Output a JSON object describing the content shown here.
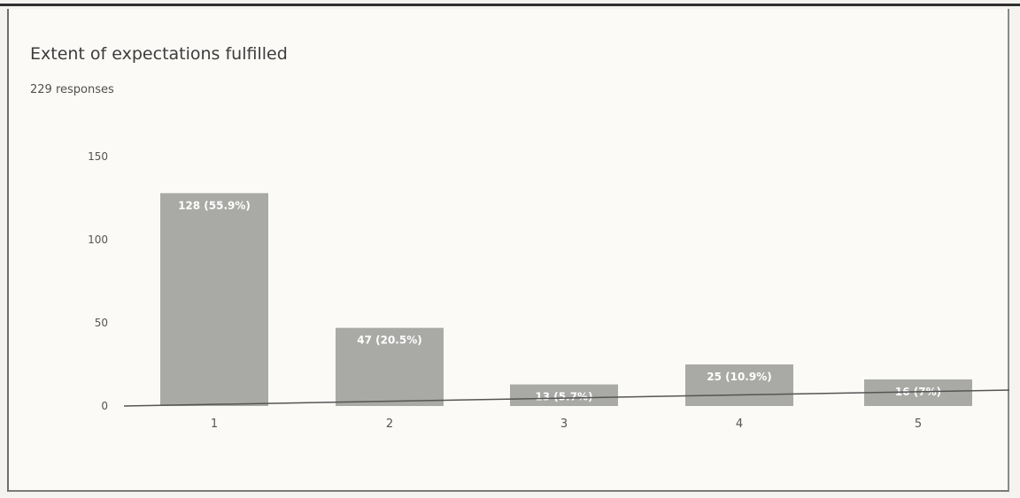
{
  "card": {
    "title": "Extent of expectations fulfilled",
    "subtitle": "229 responses"
  },
  "colors": {
    "bar": "#a9a9a6",
    "bar_label": "#ffffff",
    "axis": "#555555",
    "tick_text": "#555555",
    "background": "#fbfaf7"
  },
  "chart_data": {
    "type": "bar",
    "title": "Extent of expectations fulfilled",
    "subtitle": "229 responses",
    "categories": [
      "1",
      "2",
      "3",
      "4",
      "5"
    ],
    "values": [
      128,
      47,
      13,
      25,
      16
    ],
    "data_labels": [
      "128 (55.9%)",
      "47 (20.5%)",
      "13 (5.7%)",
      "25 (10.9%)",
      "16 (7%)"
    ],
    "yticks": [
      0,
      50,
      100,
      150
    ],
    "ylim": [
      0,
      150
    ],
    "xlabel": "",
    "ylabel": "",
    "grid": false,
    "legend": "none"
  }
}
